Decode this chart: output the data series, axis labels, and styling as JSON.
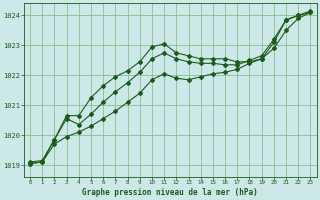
{
  "title": "Graphe pression niveau de la mer (hPa)",
  "bg_color": "#cde8e8",
  "line_color": "#1a5c1a",
  "grid_color": "#7ab87a",
  "xlim": [
    -0.5,
    23.5
  ],
  "ylim": [
    1018.6,
    1024.4
  ],
  "xticks": [
    0,
    1,
    2,
    3,
    4,
    5,
    6,
    7,
    8,
    9,
    10,
    11,
    12,
    13,
    14,
    15,
    16,
    17,
    18,
    19,
    20,
    21,
    22,
    23
  ],
  "yticks": [
    1019,
    1020,
    1021,
    1022,
    1023,
    1024
  ],
  "line1_x": [
    0,
    1,
    2,
    3,
    4,
    5,
    6,
    7,
    8,
    9,
    10,
    11,
    12,
    13,
    14,
    15,
    16,
    17,
    18,
    19,
    20,
    21,
    22,
    23
  ],
  "line1_y": [
    1019.1,
    1019.15,
    1019.85,
    1020.65,
    1020.65,
    1021.25,
    1021.65,
    1021.95,
    1022.15,
    1022.45,
    1022.95,
    1023.05,
    1022.75,
    1022.65,
    1022.55,
    1022.55,
    1022.55,
    1022.45,
    1022.45,
    1022.55,
    1023.1,
    1023.85,
    1024.0,
    1024.15
  ],
  "line2_x": [
    0,
    1,
    2,
    3,
    4,
    5,
    6,
    7,
    8,
    9,
    10,
    11,
    12,
    13,
    14,
    15,
    16,
    17,
    18,
    19,
    20,
    21,
    22,
    23
  ],
  "line2_y": [
    1019.05,
    1019.1,
    1019.85,
    1020.55,
    1020.35,
    1020.7,
    1021.1,
    1021.45,
    1021.75,
    1022.1,
    1022.55,
    1022.75,
    1022.55,
    1022.45,
    1022.4,
    1022.4,
    1022.35,
    1022.35,
    1022.5,
    1022.65,
    1023.2,
    1023.85,
    1024.0,
    1024.1
  ],
  "line3_x": [
    0,
    1,
    2,
    3,
    4,
    5,
    6,
    7,
    8,
    9,
    10,
    11,
    12,
    13,
    14,
    15,
    16,
    17,
    18,
    19,
    20,
    21,
    22,
    23
  ],
  "line3_y": [
    1019.05,
    1019.1,
    1019.7,
    1019.95,
    1020.1,
    1020.3,
    1020.55,
    1020.8,
    1021.1,
    1021.4,
    1021.85,
    1022.05,
    1021.9,
    1021.85,
    1021.95,
    1022.05,
    1022.1,
    1022.2,
    1022.4,
    1022.55,
    1022.9,
    1023.5,
    1023.9,
    1024.1
  ]
}
